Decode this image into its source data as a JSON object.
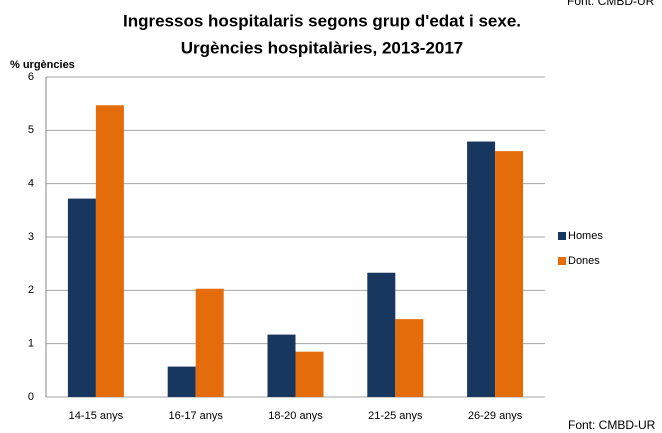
{
  "chart_data": {
    "type": "bar",
    "title": [
      "Ingressos hospitalaris  segons grup d'edat i sexe.",
      "Urgències hospitalàries,  2013-2017"
    ],
    "y_label": "% urgències",
    "source": "Font: CMBD-UR",
    "categories": [
      "14-15 anys",
      "16-17 anys",
      "18-20 anys",
      "21-25 anys",
      "26-29 anys"
    ],
    "series": [
      {
        "name": "Homes",
        "color": "#17375e",
        "values": [
          3.72,
          0.57,
          1.17,
          2.33,
          4.79
        ]
      },
      {
        "name": "Dones",
        "color": "#e46c0a",
        "values": [
          5.47,
          2.03,
          0.85,
          1.46,
          4.61
        ]
      }
    ],
    "ylim": [
      0,
      6
    ],
    "yticks": [
      0,
      1,
      2,
      3,
      4,
      5,
      6
    ],
    "grid": true,
    "legend": "right"
  }
}
